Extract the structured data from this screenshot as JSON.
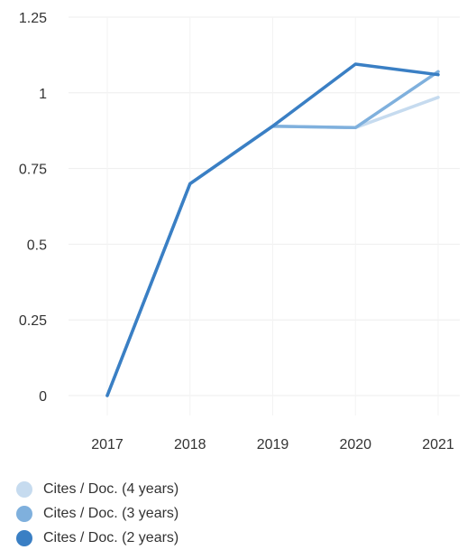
{
  "chart_data": {
    "type": "line",
    "x": [
      "2017",
      "2018",
      "2019",
      "2020",
      "2021"
    ],
    "y_ticks": [
      "0",
      "0.25",
      "0.5",
      "0.75",
      "1",
      "1.25"
    ],
    "y_tick_values": [
      0,
      0.25,
      0.5,
      0.75,
      1,
      1.25
    ],
    "ylim": [
      0,
      1.25
    ],
    "grid": true,
    "legend_position": "bottom-left",
    "series": [
      {
        "name": "Cites / Doc. (4 years)",
        "color": "#c6dbef",
        "values": [
          0,
          0.7,
          0.89,
          0.885,
          0.985
        ]
      },
      {
        "name": "Cites / Doc. (3 years)",
        "color": "#7fb0dd",
        "values": [
          0,
          0.7,
          0.89,
          0.885,
          1.07
        ]
      },
      {
        "name": "Cites / Doc. (2 years)",
        "color": "#3a7fc4",
        "values": [
          0,
          0.7,
          0.89,
          1.095,
          1.06
        ]
      }
    ]
  }
}
